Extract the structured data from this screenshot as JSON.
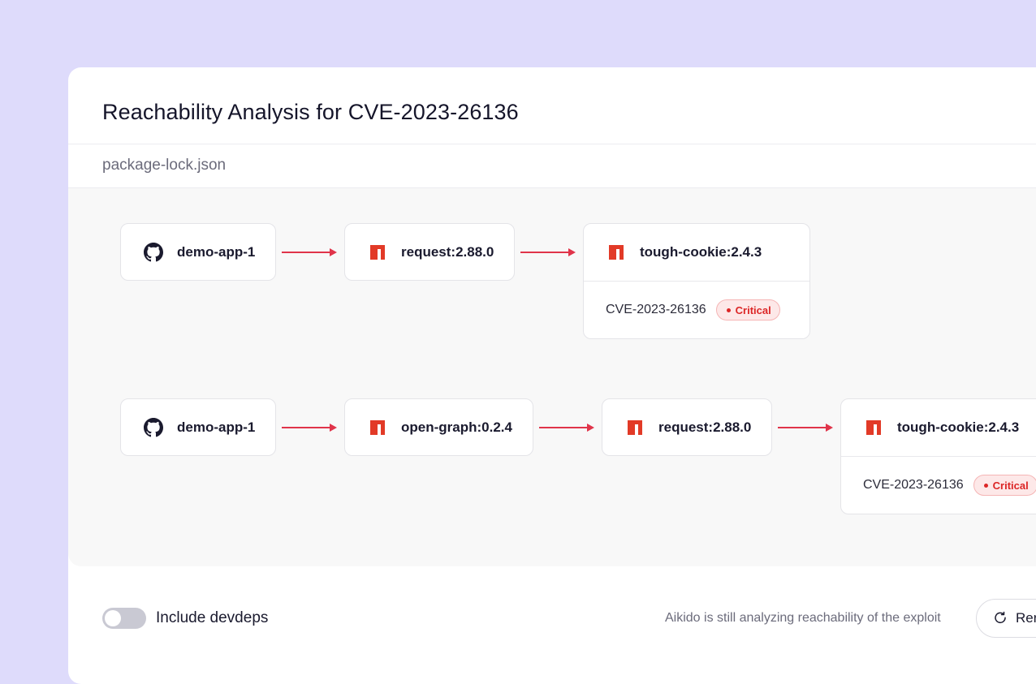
{
  "dialog": {
    "title": "Reachability Analysis for CVE-2023-26136",
    "file": "package-lock.json"
  },
  "paths": [
    {
      "nodes": [
        {
          "label": "demo-app-1",
          "icon": "github-icon"
        },
        {
          "label": "request:2.88.0",
          "icon": "npm-icon"
        },
        {
          "label": "tough-cookie:2.4.3",
          "icon": "npm-icon",
          "cve": "CVE-2023-26136",
          "severity": "Critical"
        }
      ]
    },
    {
      "nodes": [
        {
          "label": "demo-app-1",
          "icon": "github-icon"
        },
        {
          "label": "open-graph:0.2.4",
          "icon": "npm-icon"
        },
        {
          "label": "request:2.88.0",
          "icon": "npm-icon"
        },
        {
          "label": "tough-cookie:2.4.3",
          "icon": "npm-icon",
          "cve": "CVE-2023-26136",
          "severity": "Critical"
        }
      ]
    }
  ],
  "footer": {
    "toggle_label": "Include devdeps",
    "toggle_on": false,
    "status": "Aikido is still analyzing reachability of the exploit",
    "rerun_label": "Rerun",
    "rerun_icon": "refresh-icon"
  },
  "colors": {
    "background": "#dedbfb",
    "critical": "#dc2626",
    "arrow": "#e0344a",
    "npm": "#e23a27"
  }
}
